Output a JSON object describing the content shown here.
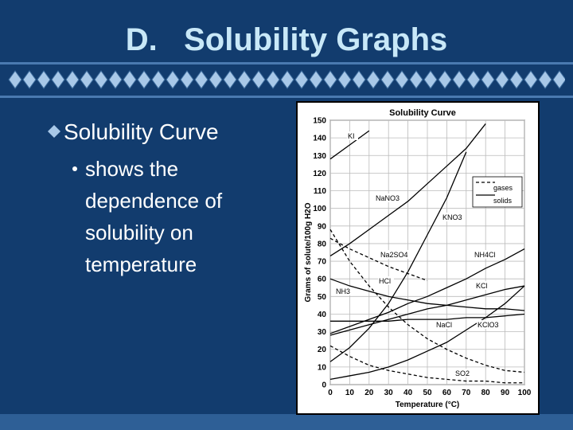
{
  "slide": {
    "title": "D.   Solubility Graphs",
    "bullet": "Solubility Curve",
    "sub_bullet_lines": [
      "shows the",
      "dependence of",
      "solubility on",
      "temperature"
    ]
  },
  "chart_data": {
    "type": "line",
    "title": "Solubility Curve",
    "x_label": "Temperature (°C)",
    "y_label": "Grams of solute/100g H2O",
    "x": [
      0,
      10,
      20,
      30,
      40,
      50,
      60,
      70,
      80,
      90,
      100
    ],
    "xlim": [
      0,
      100
    ],
    "xticks": [
      0,
      10,
      20,
      30,
      40,
      50,
      60,
      70,
      80,
      90,
      100
    ],
    "ylim": [
      0,
      150
    ],
    "yticks": [
      0,
      10,
      20,
      30,
      40,
      50,
      60,
      70,
      80,
      90,
      100,
      110,
      120,
      130,
      140,
      150
    ],
    "grid": true,
    "legend": [
      {
        "label": "gases",
        "dashed": true
      },
      {
        "label": "solids",
        "dashed": false
      }
    ],
    "series": [
      {
        "name": "KI",
        "color": "#000000",
        "dashed": false,
        "values": [
          128,
          136,
          144,
          null,
          null,
          null,
          null,
          null,
          null,
          null,
          null
        ]
      },
      {
        "name": "NaNO3",
        "color": "#000000",
        "dashed": false,
        "values": [
          73,
          80,
          88,
          96,
          104,
          114,
          124,
          134,
          148,
          null,
          null
        ]
      },
      {
        "name": "KNO3",
        "color": "#000000",
        "dashed": false,
        "values": [
          13,
          21,
          32,
          46,
          64,
          85,
          106,
          132,
          null,
          null,
          null
        ]
      },
      {
        "name": "NH4Cl",
        "color": "#000000",
        "dashed": false,
        "values": [
          29,
          33,
          37,
          41,
          46,
          50,
          55,
          60,
          66,
          71,
          77
        ]
      },
      {
        "name": "KCl",
        "color": "#000000",
        "dashed": false,
        "values": [
          28,
          31,
          34,
          37,
          40,
          43,
          45,
          48,
          51,
          54,
          56
        ]
      },
      {
        "name": "NaCl",
        "color": "#000000",
        "dashed": false,
        "values": [
          36,
          36,
          36,
          36,
          37,
          37,
          37,
          38,
          38,
          39,
          40
        ]
      },
      {
        "name": "KClO3",
        "color": "#000000",
        "dashed": false,
        "values": [
          3,
          5,
          7,
          10,
          14,
          19,
          24,
          31,
          38,
          46,
          56
        ]
      },
      {
        "name": "Na2SO4",
        "color": "#000000",
        "dashed": false,
        "values": [
          60,
          56,
          53,
          50,
          48,
          46,
          45,
          44,
          43,
          43,
          42
        ]
      },
      {
        "name": "HCl",
        "color": "#000000",
        "dashed": true,
        "values": [
          83,
          77,
          72,
          67,
          63,
          59,
          null,
          null,
          null,
          null,
          null
        ]
      },
      {
        "name": "NH3",
        "color": "#000000",
        "dashed": true,
        "values": [
          88,
          70,
          56,
          44,
          34,
          26,
          20,
          15,
          11,
          8,
          7
        ]
      },
      {
        "name": "SO2",
        "color": "#000000",
        "dashed": true,
        "values": [
          22,
          16,
          11,
          8,
          6,
          4,
          3,
          2,
          2,
          1,
          1
        ]
      }
    ]
  }
}
